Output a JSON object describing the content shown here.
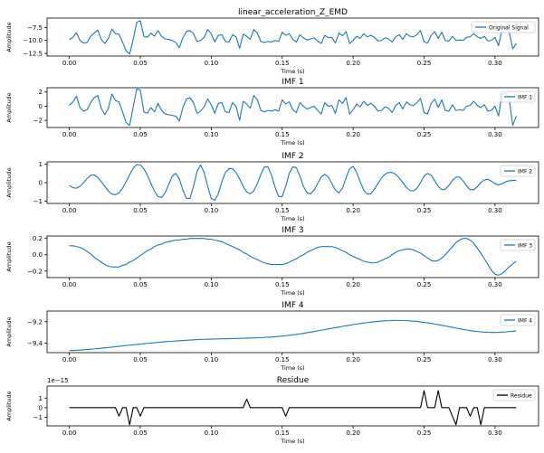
{
  "chart_data": {
    "type": "line",
    "x_values": [
      0.0,
      0.0025,
      0.005,
      0.0075,
      0.01,
      0.0125,
      0.015,
      0.0175,
      0.02,
      0.0225,
      0.025,
      0.0275,
      0.03,
      0.0325,
      0.035,
      0.0375,
      0.04,
      0.0425,
      0.045,
      0.0475,
      0.05,
      0.0525,
      0.055,
      0.0575,
      0.06,
      0.0625,
      0.065,
      0.0675,
      0.07,
      0.0725,
      0.075,
      0.0775,
      0.08,
      0.0825,
      0.085,
      0.0875,
      0.09,
      0.0925,
      0.095,
      0.0975,
      0.1,
      0.1025,
      0.105,
      0.1075,
      0.11,
      0.1125,
      0.115,
      0.1175,
      0.12,
      0.1225,
      0.125,
      0.1275,
      0.13,
      0.1325,
      0.135,
      0.1375,
      0.14,
      0.1425,
      0.145,
      0.1475,
      0.15,
      0.1525,
      0.155,
      0.1575,
      0.16,
      0.1625,
      0.165,
      0.1675,
      0.17,
      0.1725,
      0.175,
      0.1775,
      0.18,
      0.1825,
      0.185,
      0.1875,
      0.19,
      0.1925,
      0.195,
      0.1975,
      0.2,
      0.2025,
      0.205,
      0.2075,
      0.21,
      0.2125,
      0.215,
      0.2175,
      0.22,
      0.2225,
      0.225,
      0.2275,
      0.23,
      0.2325,
      0.235,
      0.2375,
      0.24,
      0.2425,
      0.245,
      0.2475,
      0.25,
      0.2525,
      0.255,
      0.2575,
      0.26,
      0.2625,
      0.265,
      0.2675,
      0.27,
      0.2725,
      0.275,
      0.2775,
      0.28,
      0.2825,
      0.285,
      0.2875,
      0.29,
      0.2925,
      0.295,
      0.2975,
      0.3,
      0.3025,
      0.305,
      0.3075,
      0.31,
      0.3125,
      0.315
    ],
    "x_range": [
      -0.0157,
      0.3307
    ],
    "x_ticks": [
      0.0,
      0.05,
      0.1,
      0.15,
      0.2,
      0.25,
      0.3
    ],
    "x_tick_labels": [
      "0.00",
      "0.05",
      "0.10",
      "0.15",
      "0.20",
      "0.25",
      "0.30"
    ],
    "panels": [
      {
        "title": "linear_acceleration_Z_EMD",
        "xlabel": "Time (s)",
        "ylabel": "Amplitude",
        "ylim": [
          -13.0,
          -5.7
        ],
        "y_ticks": [
          -12.5,
          -10.0,
          -7.5
        ],
        "y_tick_labels": [
          "−12.5",
          "−10.0",
          "−7.5"
        ],
        "offset_text": "",
        "legend": "Original Signal",
        "color": "#1f77b4",
        "values": [
          -9.85,
          -9.4,
          -8.5,
          -10.0,
          -10.5,
          -10.4,
          -9.2,
          -8.6,
          -8.0,
          -9.8,
          -10.6,
          -9.6,
          -7.8,
          -8.7,
          -8.8,
          -10.3,
          -12.0,
          -12.6,
          -9.8,
          -6.5,
          -6.2,
          -9.2,
          -9.4,
          -8.6,
          -9.2,
          -8.1,
          -9.2,
          -9.7,
          -9.8,
          -10.0,
          -10.4,
          -11.4,
          -9.5,
          -8.3,
          -8.1,
          -8.7,
          -10.2,
          -10.0,
          -9.4,
          -7.9,
          -8.7,
          -10.3,
          -9.0,
          -8.9,
          -10.2,
          -10.3,
          -8.9,
          -9.3,
          -11.5,
          -8.8,
          -9.2,
          -9.8,
          -7.9,
          -8.6,
          -10.2,
          -10.4,
          -10.2,
          -10.3,
          -10.0,
          -10.2,
          -8.4,
          -9.0,
          -8.7,
          -9.8,
          -10.3,
          -8.9,
          -9.5,
          -9.9,
          -9.7,
          -9.5,
          -10.1,
          -10.6,
          -9.0,
          -9.5,
          -9.4,
          -10.5,
          -8.6,
          -9.1,
          -8.3,
          -10.6,
          -10.0,
          -9.2,
          -9.6,
          -8.7,
          -9.3,
          -9.0,
          -9.4,
          -10.1,
          -10.0,
          -9.5,
          -9.7,
          -10.3,
          -9.3,
          -8.9,
          -9.8,
          -8.7,
          -9.2,
          -9.3,
          -8.9,
          -8.1,
          -10.3,
          -10.5,
          -9.0,
          -8.3,
          -9.6,
          -8.4,
          -10.0,
          -10.1,
          -9.2,
          -10.0,
          -9.9,
          -10.0,
          -9.4,
          -9.3,
          -8.7,
          -9.3,
          -9.6,
          -9.2,
          -10.1,
          -10.0,
          -9.4,
          -11.0,
          -7.8,
          -7.5,
          -8.4,
          -11.6,
          -10.6
        ]
      },
      {
        "title": "IMF 1",
        "xlabel": "Time (s)",
        "ylabel": "Amplitude",
        "ylim": [
          -3.0,
          2.6
        ],
        "y_ticks": [
          -2,
          0,
          2
        ],
        "y_tick_labels": [
          "−2",
          "0",
          "2"
        ],
        "offset_text": "",
        "legend": "IMF 1",
        "color": "#1f77b4",
        "values": [
          0.1,
          0.6,
          1.4,
          -0.2,
          -0.7,
          -0.5,
          0.5,
          1.2,
          1.5,
          -0.3,
          -1.2,
          -0.3,
          1.7,
          0.8,
          0.6,
          -0.8,
          -2.3,
          -2.7,
          -0.1,
          2.4,
          2.3,
          -0.8,
          -1.0,
          -0.2,
          -0.8,
          0.4,
          -0.6,
          -1.1,
          -1.2,
          -1.3,
          -1.4,
          -2.1,
          -0.2,
          1.0,
          1.2,
          0.5,
          -1.0,
          -0.7,
          -0.1,
          1.0,
          0.2,
          -1.0,
          0.4,
          0.5,
          -0.8,
          -0.9,
          0.5,
          0.0,
          -2.0,
          0.7,
          0.3,
          -0.3,
          1.5,
          0.9,
          -0.6,
          -0.8,
          -0.6,
          -0.7,
          -0.5,
          -0.7,
          0.9,
          0.3,
          0.6,
          -0.5,
          -0.9,
          0.5,
          0.0,
          -0.4,
          -0.2,
          0.0,
          -0.6,
          -1.1,
          0.5,
          0.0,
          0.1,
          -1.0,
          0.9,
          0.4,
          1.2,
          -1.1,
          -0.5,
          0.3,
          -0.1,
          0.7,
          0.1,
          0.4,
          0.0,
          -0.7,
          -0.6,
          -0.1,
          -0.3,
          -0.9,
          0.1,
          0.5,
          -0.4,
          0.6,
          0.2,
          0.1,
          0.5,
          1.1,
          -0.9,
          -1.1,
          0.4,
          1.0,
          -0.2,
          0.9,
          -0.6,
          -0.7,
          0.2,
          -0.6,
          -0.5,
          -0.6,
          0.0,
          0.1,
          0.7,
          0.1,
          -0.2,
          0.2,
          -0.7,
          -0.6,
          0.0,
          -1.4,
          1.8,
          1.9,
          1.0,
          -2.7,
          -1.4
        ]
      },
      {
        "title": "IMF 2",
        "xlabel": "Time (s)",
        "ylabel": "Amplitude",
        "ylim": [
          -1.12,
          1.12
        ],
        "y_ticks": [
          -1,
          0,
          1
        ],
        "y_tick_labels": [
          "−1",
          "0",
          "1"
        ],
        "offset_text": "",
        "legend": "IMF 2",
        "color": "#1f77b4",
        "values": [
          -0.15,
          -0.27,
          -0.3,
          -0.2,
          0.0,
          0.22,
          0.4,
          0.42,
          0.28,
          0.05,
          -0.2,
          -0.45,
          -0.62,
          -0.65,
          -0.55,
          -0.3,
          0.05,
          0.42,
          0.78,
          0.97,
          0.95,
          0.75,
          0.4,
          -0.05,
          -0.45,
          -0.75,
          -0.8,
          -0.55,
          -0.1,
          0.35,
          0.5,
          0.2,
          -0.4,
          -0.85,
          -0.85,
          -0.2,
          0.6,
          0.95,
          0.55,
          -0.2,
          -0.85,
          -0.95,
          -0.6,
          0.05,
          0.55,
          0.75,
          0.75,
          0.55,
          0.2,
          -0.2,
          -0.5,
          -0.6,
          -0.45,
          -0.05,
          0.45,
          0.85,
          0.85,
          0.4,
          -0.25,
          -0.75,
          -0.75,
          -0.2,
          0.5,
          0.85,
          0.8,
          0.35,
          -0.2,
          -0.55,
          -0.6,
          -0.4,
          -0.05,
          0.3,
          0.45,
          0.3,
          -0.05,
          -0.4,
          -0.55,
          -0.3,
          0.25,
          0.75,
          0.88,
          0.55,
          0.05,
          -0.4,
          -0.62,
          -0.6,
          -0.35,
          -0.05,
          0.25,
          0.45,
          0.55,
          0.55,
          0.45,
          0.25,
          0.0,
          -0.25,
          -0.42,
          -0.45,
          -0.3,
          0.0,
          0.35,
          0.5,
          0.4,
          0.1,
          -0.2,
          -0.38,
          -0.35,
          -0.15,
          0.12,
          0.3,
          0.3,
          0.1,
          -0.18,
          -0.38,
          -0.38,
          -0.22,
          0.0,
          0.15,
          0.18,
          0.08,
          -0.06,
          -0.12,
          -0.06,
          0.05,
          0.1,
          0.12,
          0.12
        ]
      },
      {
        "title": "IMF 3",
        "xlabel": "Time (s)",
        "ylabel": "Amplitude",
        "ylim": [
          -0.28,
          0.23
        ],
        "y_ticks": [
          -0.2,
          0.0,
          0.2
        ],
        "y_tick_labels": [
          "−0.2",
          "0.0",
          "0.2"
        ],
        "offset_text": "",
        "legend": "IMF 3",
        "color": "#1f77b4",
        "values": [
          0.11,
          0.11,
          0.1,
          0.09,
          0.07,
          0.04,
          0.01,
          -0.03,
          -0.06,
          -0.09,
          -0.12,
          -0.14,
          -0.15,
          -0.15,
          -0.15,
          -0.13,
          -0.12,
          -0.09,
          -0.07,
          -0.04,
          -0.01,
          0.02,
          0.05,
          0.07,
          0.1,
          0.12,
          0.13,
          0.15,
          0.16,
          0.17,
          0.18,
          0.18,
          0.19,
          0.19,
          0.2,
          0.2,
          0.2,
          0.2,
          0.2,
          0.19,
          0.19,
          0.18,
          0.17,
          0.16,
          0.14,
          0.12,
          0.1,
          0.08,
          0.06,
          0.03,
          0.01,
          -0.02,
          -0.04,
          -0.06,
          -0.08,
          -0.1,
          -0.11,
          -0.12,
          -0.12,
          -0.12,
          -0.12,
          -0.11,
          -0.09,
          -0.07,
          -0.05,
          -0.02,
          0.0,
          0.03,
          0.05,
          0.07,
          0.09,
          0.1,
          0.1,
          0.1,
          0.1,
          0.09,
          0.07,
          0.05,
          0.03,
          0.0,
          -0.02,
          -0.04,
          -0.06,
          -0.08,
          -0.09,
          -0.1,
          -0.1,
          -0.09,
          -0.07,
          -0.05,
          -0.03,
          0.0,
          0.03,
          0.05,
          0.06,
          0.07,
          0.07,
          0.06,
          0.04,
          0.02,
          -0.01,
          -0.04,
          -0.07,
          -0.08,
          -0.07,
          -0.04,
          0.0,
          0.05,
          0.1,
          0.15,
          0.18,
          0.2,
          0.2,
          0.18,
          0.14,
          0.08,
          0.02,
          -0.05,
          -0.12,
          -0.19,
          -0.24,
          -0.25,
          -0.23,
          -0.19,
          -0.15,
          -0.11,
          -0.08
        ]
      },
      {
        "title": "IMF 4",
        "xlabel": "Time (s)",
        "ylabel": "Amplitude",
        "ylim": [
          -9.49,
          -9.1
        ],
        "y_ticks": [
          -9.4,
          -9.2
        ],
        "y_tick_labels": [
          "−9.4",
          "−9.2"
        ],
        "offset_text": "",
        "legend": "IMF 4",
        "color": "#1f77b4",
        "values": [
          -9.47,
          -9.47,
          -9.468,
          -9.466,
          -9.464,
          -9.461,
          -9.458,
          -9.455,
          -9.452,
          -9.448,
          -9.445,
          -9.442,
          -9.438,
          -9.434,
          -9.431,
          -9.427,
          -9.423,
          -9.42,
          -9.417,
          -9.413,
          -9.41,
          -9.406,
          -9.403,
          -9.4,
          -9.397,
          -9.394,
          -9.391,
          -9.388,
          -9.385,
          -9.383,
          -9.38,
          -9.378,
          -9.376,
          -9.374,
          -9.372,
          -9.37,
          -9.368,
          -9.366,
          -9.365,
          -9.364,
          -9.363,
          -9.362,
          -9.361,
          -9.36,
          -9.36,
          -9.359,
          -9.358,
          -9.357,
          -9.356,
          -9.355,
          -9.354,
          -9.353,
          -9.352,
          -9.351,
          -9.349,
          -9.347,
          -9.345,
          -9.343,
          -9.341,
          -9.338,
          -9.335,
          -9.331,
          -9.327,
          -9.323,
          -9.319,
          -9.314,
          -9.309,
          -9.303,
          -9.298,
          -9.292,
          -9.286,
          -9.28,
          -9.274,
          -9.268,
          -9.262,
          -9.256,
          -9.25,
          -9.244,
          -9.238,
          -9.233,
          -9.227,
          -9.222,
          -9.217,
          -9.212,
          -9.208,
          -9.204,
          -9.2,
          -9.197,
          -9.194,
          -9.192,
          -9.19,
          -9.189,
          -9.188,
          -9.188,
          -9.189,
          -9.19,
          -9.192,
          -9.195,
          -9.198,
          -9.202,
          -9.206,
          -9.211,
          -9.216,
          -9.222,
          -9.228,
          -9.234,
          -9.24,
          -9.247,
          -9.253,
          -9.26,
          -9.266,
          -9.272,
          -9.278,
          -9.283,
          -9.288,
          -9.292,
          -9.295,
          -9.298,
          -9.3,
          -9.301,
          -9.301,
          -9.3,
          -9.298,
          -9.296,
          -9.293,
          -9.29,
          -9.287
        ]
      },
      {
        "title": "Residue",
        "xlabel": "Time (s)",
        "ylabel": "Amplitude",
        "ylim": [
          -1.9,
          2.25
        ],
        "y_ticks": [
          -1,
          0,
          1
        ],
        "y_tick_labels": [
          "−1",
          "0",
          "1"
        ],
        "offset_text": "1e−15",
        "legend": "Residue",
        "color": "#000000",
        "values": [
          0,
          0,
          0,
          0,
          0,
          0,
          0,
          0,
          0,
          0,
          0,
          0,
          0,
          0,
          -0.89,
          0,
          0,
          -1.78,
          0,
          0,
          -0.89,
          0,
          0,
          0,
          0,
          0,
          0,
          0,
          0,
          0,
          0,
          0,
          0,
          0,
          0,
          0,
          0,
          0,
          0,
          0,
          0,
          0,
          0,
          0,
          0,
          0,
          0,
          0,
          0,
          0,
          0.89,
          0,
          0,
          0,
          0,
          0,
          0,
          0,
          0,
          0,
          0,
          -0.89,
          0,
          0,
          0,
          0,
          0,
          0,
          0,
          0,
          0,
          0,
          0,
          0,
          0,
          0,
          0,
          0,
          0,
          0,
          0,
          0,
          0,
          0,
          0,
          0,
          0,
          0,
          0,
          0,
          0,
          0,
          0,
          0,
          0,
          0,
          0,
          0,
          0,
          0,
          1.78,
          0,
          0,
          0,
          1.78,
          0,
          0,
          0,
          -0.89,
          -1.78,
          0,
          0,
          0,
          -0.89,
          0,
          0,
          -1.78,
          0,
          0,
          0,
          0,
          0,
          0,
          0,
          0,
          0,
          0
        ]
      }
    ]
  }
}
